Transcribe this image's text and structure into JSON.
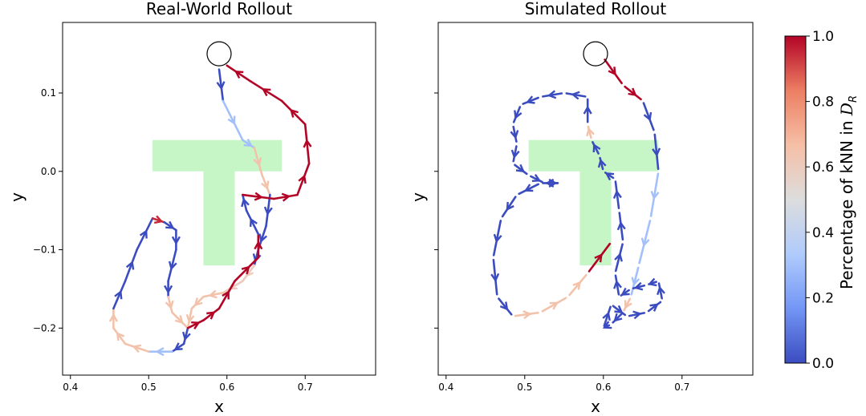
{
  "chart_data": [
    {
      "type": "line",
      "title": "Real-World Rollout",
      "xlabel": "x",
      "ylabel": "y",
      "xlim": [
        0.39,
        0.79
      ],
      "ylim": [
        -0.26,
        0.19
      ],
      "xticks": [
        0.4,
        0.5,
        0.6,
        0.7
      ],
      "xtick_labels": [
        "0.4",
        "0.5",
        "0.6",
        "0.7"
      ],
      "yticks": [
        -0.2,
        -0.1,
        0.0,
        0.1
      ],
      "ytick_labels": [
        "−0.2",
        "−0.1",
        "0.0",
        "0.1"
      ],
      "start_marker": {
        "x": 0.59,
        "y": 0.15
      },
      "target_shape": {
        "name": "T",
        "color": "#c6f5c6",
        "polygon": [
          [
            0.505,
            0.04
          ],
          [
            0.67,
            0.04
          ],
          [
            0.67,
            0.0
          ],
          [
            0.61,
            0.0
          ],
          [
            0.61,
            -0.12
          ],
          [
            0.57,
            -0.12
          ],
          [
            0.57,
            0.0
          ],
          [
            0.505,
            0.0
          ]
        ]
      },
      "color_value_meaning": "Percentage of kNN in D_R",
      "path": [
        {
          "x": 0.59,
          "y": 0.13,
          "c": 0.0
        },
        {
          "x": 0.595,
          "y": 0.09,
          "c": 0.3
        },
        {
          "x": 0.62,
          "y": 0.04,
          "c": 0.3
        },
        {
          "x": 0.635,
          "y": 0.03,
          "c": 0.65
        },
        {
          "x": 0.645,
          "y": -0.005,
          "c": 0.65
        },
        {
          "x": 0.655,
          "y": -0.03,
          "c": 0.0
        },
        {
          "x": 0.65,
          "y": -0.07,
          "c": 0.0
        },
        {
          "x": 0.64,
          "y": -0.1,
          "c": 0.0
        },
        {
          "x": 0.635,
          "y": -0.12,
          "c": 0.6
        },
        {
          "x": 0.62,
          "y": -0.14,
          "c": 0.6
        },
        {
          "x": 0.595,
          "y": -0.155,
          "c": 0.65
        },
        {
          "x": 0.57,
          "y": -0.16,
          "c": 0.65
        },
        {
          "x": 0.555,
          "y": -0.175,
          "c": 0.65
        },
        {
          "x": 0.55,
          "y": -0.2,
          "c": 0.0
        },
        {
          "x": 0.545,
          "y": -0.22,
          "c": 0.0
        },
        {
          "x": 0.53,
          "y": -0.23,
          "c": 0.3
        },
        {
          "x": 0.5,
          "y": -0.23,
          "c": 0.65
        },
        {
          "x": 0.47,
          "y": -0.22,
          "c": 0.65
        },
        {
          "x": 0.455,
          "y": -0.2,
          "c": 0.65
        },
        {
          "x": 0.455,
          "y": -0.175,
          "c": 0.0
        },
        {
          "x": 0.47,
          "y": -0.14,
          "c": 0.0
        },
        {
          "x": 0.485,
          "y": -0.1,
          "c": 0.0
        },
        {
          "x": 0.505,
          "y": -0.06,
          "c": 0.95
        },
        {
          "x": 0.52,
          "y": -0.065,
          "c": 0.0
        },
        {
          "x": 0.535,
          "y": -0.075,
          "c": 0.0
        },
        {
          "x": 0.535,
          "y": -0.1,
          "c": 0.0
        },
        {
          "x": 0.525,
          "y": -0.14,
          "c": 0.0
        },
        {
          "x": 0.525,
          "y": -0.16,
          "c": 0.65
        },
        {
          "x": 0.53,
          "y": -0.18,
          "c": 0.65
        },
        {
          "x": 0.55,
          "y": -0.2,
          "c": 1.0
        },
        {
          "x": 0.57,
          "y": -0.19,
          "c": 1.0
        },
        {
          "x": 0.59,
          "y": -0.175,
          "c": 1.0
        },
        {
          "x": 0.61,
          "y": -0.14,
          "c": 1.0
        },
        {
          "x": 0.64,
          "y": -0.11,
          "c": 1.0
        },
        {
          "x": 0.64,
          "y": -0.08,
          "c": 0.0
        },
        {
          "x": 0.625,
          "y": -0.05,
          "c": 0.0
        },
        {
          "x": 0.62,
          "y": -0.03,
          "c": 1.0
        },
        {
          "x": 0.66,
          "y": -0.035,
          "c": 1.0
        },
        {
          "x": 0.69,
          "y": -0.03,
          "c": 1.0
        },
        {
          "x": 0.705,
          "y": 0.01,
          "c": 1.0
        },
        {
          "x": 0.7,
          "y": 0.06,
          "c": 1.0
        },
        {
          "x": 0.67,
          "y": 0.09,
          "c": 1.0
        },
        {
          "x": 0.63,
          "y": 0.115,
          "c": 1.0
        },
        {
          "x": 0.6,
          "y": 0.135,
          "c": 1.0
        }
      ]
    },
    {
      "type": "line",
      "title": "Simulated Rollout",
      "xlabel": "x",
      "ylabel": "y",
      "xlim": [
        0.39,
        0.79
      ],
      "ylim": [
        -0.26,
        0.19
      ],
      "xticks": [
        0.4,
        0.5,
        0.6,
        0.7
      ],
      "xtick_labels": [
        "0.4",
        "0.5",
        "0.6",
        "0.7"
      ],
      "yticks": [
        -0.2,
        -0.1,
        0.0,
        0.1
      ],
      "ytick_labels": [],
      "start_marker": {
        "x": 0.59,
        "y": 0.15
      },
      "target_shape": {
        "name": "T",
        "color": "#c6f5c6",
        "polygon": [
          [
            0.505,
            0.04
          ],
          [
            0.67,
            0.04
          ],
          [
            0.67,
            0.0
          ],
          [
            0.61,
            0.0
          ],
          [
            0.61,
            -0.12
          ],
          [
            0.57,
            -0.12
          ],
          [
            0.57,
            0.0
          ],
          [
            0.505,
            0.0
          ]
        ]
      },
      "color_value_meaning": "Percentage of kNN in D_R",
      "path": [
        {
          "x": 0.6,
          "y": 0.145,
          "c": 1.0
        },
        {
          "x": 0.625,
          "y": 0.11,
          "c": 1.0
        },
        {
          "x": 0.65,
          "y": 0.09,
          "c": 0.0
        },
        {
          "x": 0.665,
          "y": 0.05,
          "c": 0.0
        },
        {
          "x": 0.67,
          "y": 0.0,
          "c": 0.3
        },
        {
          "x": 0.66,
          "y": -0.06,
          "c": 0.3
        },
        {
          "x": 0.645,
          "y": -0.12,
          "c": 0.3
        },
        {
          "x": 0.635,
          "y": -0.16,
          "c": 0.65
        },
        {
          "x": 0.625,
          "y": -0.18,
          "c": 0.0
        },
        {
          "x": 0.61,
          "y": -0.195,
          "c": 0.0
        },
        {
          "x": 0.6,
          "y": -0.2,
          "c": 0.0
        },
        {
          "x": 0.61,
          "y": -0.17,
          "c": 0.0
        },
        {
          "x": 0.63,
          "y": -0.185,
          "c": 0.0
        },
        {
          "x": 0.655,
          "y": -0.18,
          "c": 0.0
        },
        {
          "x": 0.675,
          "y": -0.165,
          "c": 0.0
        },
        {
          "x": 0.67,
          "y": -0.14,
          "c": 0.0
        },
        {
          "x": 0.655,
          "y": -0.145,
          "c": 0.0
        },
        {
          "x": 0.635,
          "y": -0.15,
          "c": 0.0
        },
        {
          "x": 0.62,
          "y": -0.16,
          "c": 0.0
        },
        {
          "x": 0.615,
          "y": -0.13,
          "c": 0.0
        },
        {
          "x": 0.625,
          "y": -0.09,
          "c": 0.0
        },
        {
          "x": 0.62,
          "y": -0.05,
          "c": 0.0
        },
        {
          "x": 0.615,
          "y": -0.01,
          "c": 0.0
        },
        {
          "x": 0.6,
          "y": 0.0,
          "c": 0.0
        },
        {
          "x": 0.595,
          "y": 0.02,
          "c": 0.0
        },
        {
          "x": 0.585,
          "y": 0.04,
          "c": 0.65
        },
        {
          "x": 0.58,
          "y": 0.06,
          "c": 0.0
        },
        {
          "x": 0.58,
          "y": 0.095,
          "c": 0.0
        },
        {
          "x": 0.55,
          "y": 0.1,
          "c": 0.0
        },
        {
          "x": 0.52,
          "y": 0.095,
          "c": 0.0
        },
        {
          "x": 0.495,
          "y": 0.085,
          "c": 0.0
        },
        {
          "x": 0.485,
          "y": 0.06,
          "c": 0.0
        },
        {
          "x": 0.49,
          "y": 0.035,
          "c": 0.0
        },
        {
          "x": 0.485,
          "y": 0.01,
          "c": 0.0
        },
        {
          "x": 0.505,
          "y": -0.005,
          "c": 0.0
        },
        {
          "x": 0.525,
          "y": -0.015,
          "c": 0.0
        },
        {
          "x": 0.545,
          "y": -0.015,
          "c": 0.0
        },
        {
          "x": 0.52,
          "y": -0.015,
          "c": 0.0
        },
        {
          "x": 0.49,
          "y": -0.03,
          "c": 0.0
        },
        {
          "x": 0.47,
          "y": -0.06,
          "c": 0.0
        },
        {
          "x": 0.46,
          "y": -0.11,
          "c": 0.0
        },
        {
          "x": 0.465,
          "y": -0.16,
          "c": 0.0
        },
        {
          "x": 0.485,
          "y": -0.185,
          "c": 0.65
        },
        {
          "x": 0.52,
          "y": -0.18,
          "c": 0.65
        },
        {
          "x": 0.555,
          "y": -0.16,
          "c": 0.65
        },
        {
          "x": 0.58,
          "y": -0.13,
          "c": 1.0
        },
        {
          "x": 0.61,
          "y": -0.09,
          "c": 1.0
        }
      ]
    }
  ],
  "colorbar": {
    "label_main": "Percentage of kNN in ",
    "label_symbol": "D",
    "label_subscript": "R",
    "ticks": [
      0.0,
      0.2,
      0.4,
      0.6,
      0.8,
      1.0
    ],
    "tick_labels": [
      "0.0",
      "0.2",
      "0.4",
      "0.6",
      "0.8",
      "1.0"
    ],
    "range": [
      0.0,
      1.0
    ],
    "colormap": [
      "#3b4cc0",
      "#7396f5",
      "#b0cbfc",
      "#dcdddd",
      "#f6bfa6",
      "#ec7f63",
      "#b40426"
    ]
  }
}
